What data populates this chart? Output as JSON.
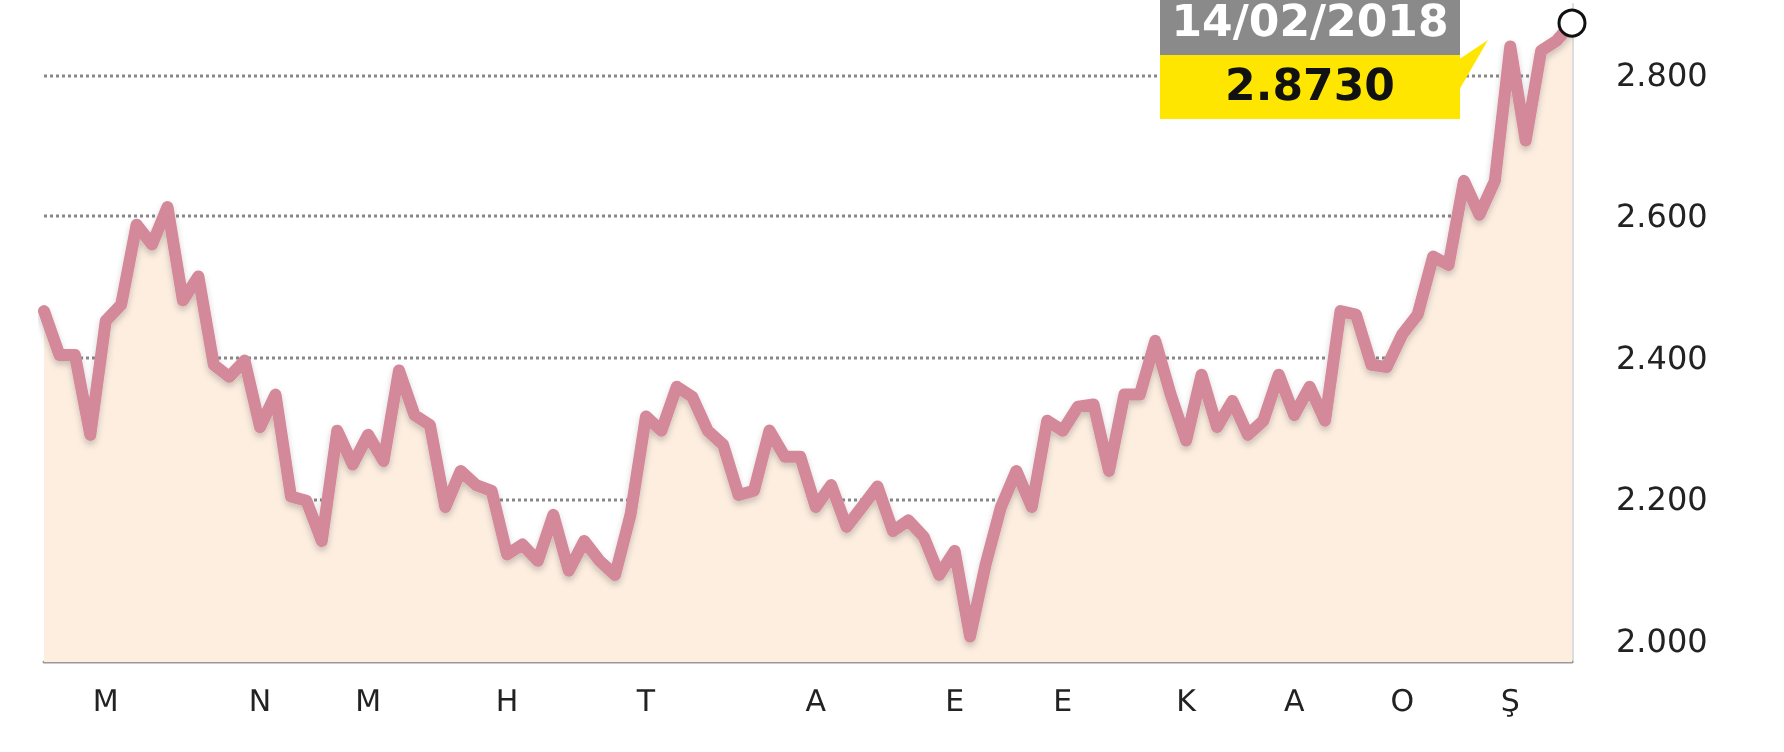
{
  "chart_data": {
    "type": "area",
    "categories": [
      null,
      null,
      null,
      null,
      "M",
      null,
      null,
      null,
      null,
      null,
      null,
      null,
      null,
      null,
      "N",
      null,
      null,
      null,
      null,
      null,
      null,
      "M",
      null,
      null,
      null,
      null,
      null,
      null,
      null,
      null,
      "H",
      null,
      null,
      null,
      null,
      null,
      null,
      null,
      null,
      "T",
      null,
      null,
      null,
      null,
      null,
      null,
      null,
      null,
      null,
      null,
      "A",
      null,
      null,
      null,
      null,
      null,
      null,
      null,
      null,
      "E",
      null,
      null,
      null,
      null,
      null,
      null,
      "E",
      null,
      null,
      null,
      null,
      null,
      null,
      null,
      "K",
      null,
      null,
      null,
      null,
      null,
      null,
      "A",
      null,
      null,
      null,
      null,
      null,
      null,
      "O",
      null,
      null,
      null,
      null,
      null,
      null,
      "Ş",
      null,
      null,
      null,
      null
    ],
    "series": [
      {
        "color": "#d4899b",
        "values": [
          2.466,
          2.404,
          2.404,
          2.291,
          2.452,
          2.475,
          2.588,
          2.56,
          2.613,
          2.481,
          2.515,
          2.39,
          2.373,
          2.396,
          2.302,
          2.348,
          2.204,
          2.198,
          2.141,
          2.297,
          2.249,
          2.291,
          2.254,
          2.382,
          2.319,
          2.305,
          2.189,
          2.24,
          2.22,
          2.212,
          2.122,
          2.136,
          2.113,
          2.178,
          2.099,
          2.141,
          2.113,
          2.093,
          2.178,
          2.317,
          2.297,
          2.359,
          2.345,
          2.297,
          2.277,
          2.206,
          2.212,
          2.297,
          2.26,
          2.26,
          2.189,
          2.22,
          2.161,
          2.189,
          2.218,
          2.155,
          2.17,
          2.147,
          2.093,
          2.127,
          2.006,
          2.107,
          2.189,
          2.24,
          2.189,
          2.311,
          2.297,
          2.331,
          2.334,
          2.24,
          2.348,
          2.348,
          2.424,
          2.348,
          2.283,
          2.376,
          2.302,
          2.339,
          2.291,
          2.311,
          2.376,
          2.319,
          2.359,
          2.311,
          2.466,
          2.461,
          2.39,
          2.387,
          2.433,
          2.461,
          2.543,
          2.531,
          2.65,
          2.602,
          2.65,
          2.84,
          2.707,
          2.834,
          2.848,
          2.873
        ]
      }
    ],
    "ylim": [
      1.97,
      2.9
    ],
    "yticks": [
      {
        "value": 2,
        "label": "2.000"
      },
      {
        "value": 2.2,
        "label": "2.200"
      },
      {
        "value": 2.4,
        "label": "2.400"
      },
      {
        "value": 2.6,
        "label": "2.600"
      },
      {
        "value": 2.8,
        "label": "2.800"
      }
    ],
    "grid": "y",
    "marker": "none",
    "line_style": "solid",
    "annotations": [
      "14/02/2018",
      "2.8730"
    ]
  }
}
